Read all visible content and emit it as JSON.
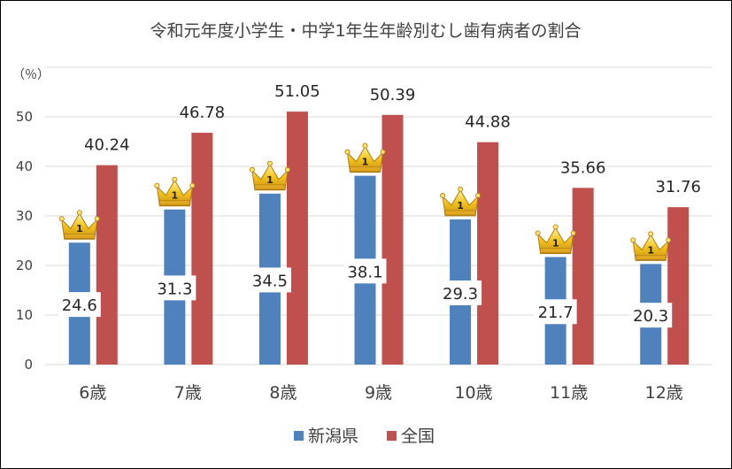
{
  "chart_data": {
    "type": "bar",
    "title": "令和元年度小学生・中学1年生年齢別むし歯有病者の割合",
    "ylabel": "（％）",
    "xlabel": "",
    "ylim": [
      0,
      60
    ],
    "yticks": [
      0,
      10,
      20,
      30,
      40,
      50
    ],
    "grid": true,
    "legend_position": "bottom",
    "categories": [
      "6歳",
      "7歳",
      "8歳",
      "9歳",
      "10歳",
      "11歳",
      "12歳"
    ],
    "series": [
      {
        "name": "新潟県",
        "color": "#4f81bd",
        "values": [
          24.6,
          31.3,
          34.5,
          38.1,
          29.3,
          21.7,
          20.3
        ]
      },
      {
        "name": "全国",
        "color": "#c0504d",
        "values": [
          40.24,
          46.78,
          51.05,
          50.39,
          44.88,
          35.66,
          31.76
        ]
      }
    ],
    "annotation_icon": "crown-icon",
    "annotation_badge_text": "1"
  }
}
